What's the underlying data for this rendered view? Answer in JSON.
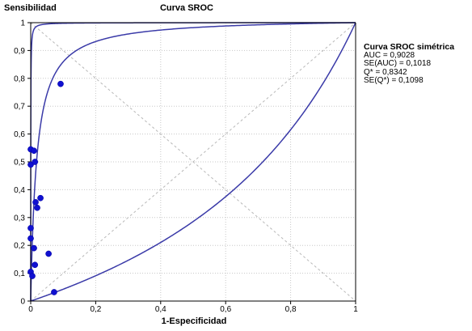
{
  "chart_data": {
    "type": "scatter",
    "title": "Curva SROC",
    "xlabel": "1-Especificidad",
    "ylabel": "Sensibilidad",
    "xlim": [
      0,
      1
    ],
    "ylim": [
      0,
      1
    ],
    "xticks": [
      "0",
      "0,2",
      "0,4",
      "0,6",
      "0,8",
      "1"
    ],
    "yticks": [
      "0",
      "0,1",
      "0,2",
      "0,3",
      "0,4",
      "0,5",
      "0,6",
      "0,7",
      "0,8",
      "0,9",
      "1"
    ],
    "grid": true,
    "points": [
      {
        "x": 0.092,
        "y": 0.78
      },
      {
        "x": 0.0,
        "y": 0.545
      },
      {
        "x": 0.01,
        "y": 0.54
      },
      {
        "x": 0.0,
        "y": 0.49
      },
      {
        "x": 0.013,
        "y": 0.5
      },
      {
        "x": 0.03,
        "y": 0.37
      },
      {
        "x": 0.015,
        "y": 0.355
      },
      {
        "x": 0.02,
        "y": 0.335
      },
      {
        "x": 0.0,
        "y": 0.262
      },
      {
        "x": 0.0,
        "y": 0.225
      },
      {
        "x": 0.01,
        "y": 0.19
      },
      {
        "x": 0.055,
        "y": 0.17
      },
      {
        "x": 0.013,
        "y": 0.13
      },
      {
        "x": 0.0,
        "y": 0.105
      },
      {
        "x": 0.005,
        "y": 0.09
      },
      {
        "x": 0.072,
        "y": 0.032
      }
    ],
    "curves": [
      {
        "type": "sroc",
        "k": 55
      },
      {
        "type": "sroc",
        "k": 4000
      },
      {
        "type": "sroc",
        "k": 0.4
      }
    ],
    "colors": {
      "points": "#1010d0",
      "curve": "#3a3aa8",
      "axis": "#000000",
      "grid": "#c8c8c8"
    },
    "legend": {
      "title": "Curva SROC simétrica",
      "lines": [
        "AUC = 0,9028",
        "SE(AUC) = 0,1018",
        "Q* = 0,8342",
        "SE(Q*) = 0,1098"
      ]
    }
  }
}
